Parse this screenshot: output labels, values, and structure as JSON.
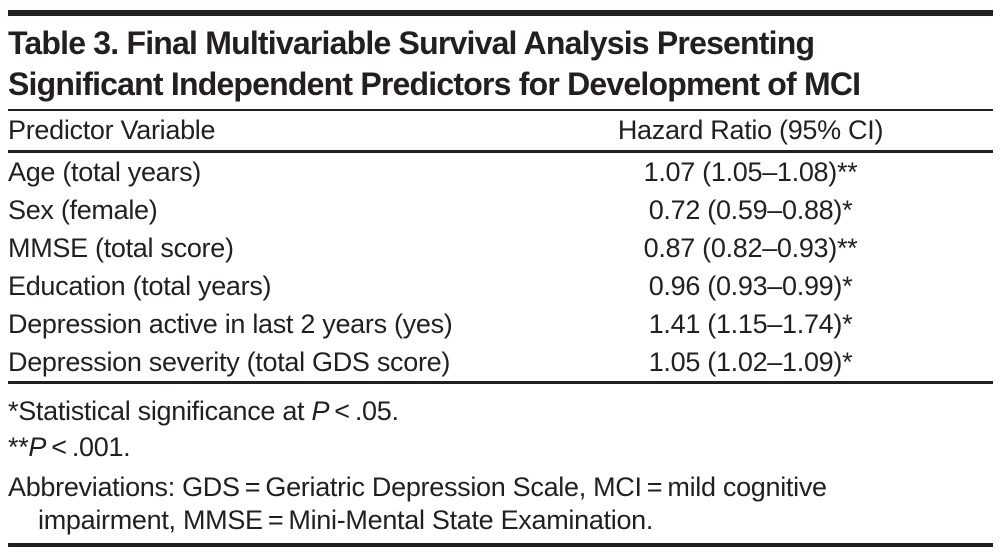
{
  "table": {
    "title_lines": [
      "Table 3. Final Multivariable Survival Analysis Presenting",
      "Significant Independent Predictors for Development of MCI"
    ],
    "columns": {
      "predictor": "Predictor Variable",
      "hazard": "Hazard Ratio (95% CI)"
    },
    "rows": [
      {
        "predictor": "Age (total years)",
        "hazard": "1.07 (1.05–1.08)**"
      },
      {
        "predictor": "Sex (female)",
        "hazard": "0.72 (0.59–0.88)*"
      },
      {
        "predictor": "MMSE (total score)",
        "hazard": "0.87 (0.82–0.93)**"
      },
      {
        "predictor": "Education (total years)",
        "hazard": "0.96 (0.93–0.99)*"
      },
      {
        "predictor": "Depression active in last 2 years (yes)",
        "hazard": "1.41 (1.15–1.74)*"
      },
      {
        "predictor": "Depression severity (total GDS score)",
        "hazard": "1.05 (1.02–1.09)*"
      }
    ],
    "footnotes": {
      "significance_05": {
        "pre": "*Statistical significance at ",
        "italic": "P",
        "post": " < .05."
      },
      "significance_001": {
        "pre": "**",
        "italic": "P",
        "post": " < .001."
      },
      "abbreviations_lines": [
        "Abbreviations: GDS = Geriatric Depression Scale, MCI = mild cognitive",
        "impairment, MMSE = Mini-Mental State Examination."
      ]
    },
    "colors": {
      "text": "#231f20",
      "rule": "#231f20",
      "background": "#ffffff"
    }
  }
}
